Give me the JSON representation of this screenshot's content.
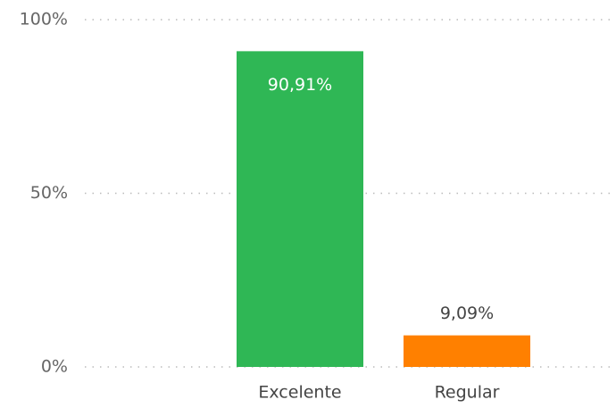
{
  "chart_data": {
    "type": "bar",
    "categories": [
      "Excelente",
      "Regular"
    ],
    "values": [
      90.91,
      9.09
    ],
    "value_labels": [
      "90,91%",
      "9,09%"
    ],
    "colors": [
      "#2fb755",
      "#ff8000"
    ],
    "ylim": [
      0,
      100
    ],
    "yticks": [
      {
        "value": 0,
        "label": "0%"
      },
      {
        "value": 50,
        "label": "50%"
      },
      {
        "value": 100,
        "label": "100%"
      }
    ],
    "grid": true
  }
}
